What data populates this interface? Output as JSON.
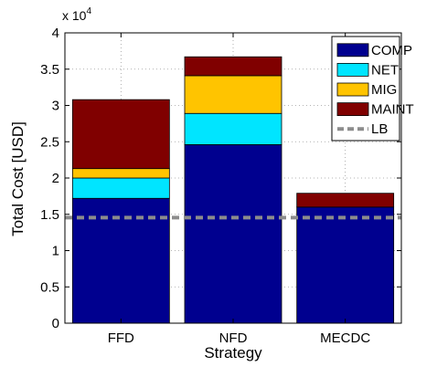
{
  "chart_data": {
    "type": "bar",
    "stacked": true,
    "categories": [
      "FFD",
      "NFD",
      "MECDC"
    ],
    "series": [
      {
        "name": "COMP",
        "color": "#00008f",
        "values": [
          17200,
          24600,
          16000
        ]
      },
      {
        "name": "NET",
        "color": "#00e5ff",
        "values": [
          2800,
          4300,
          0
        ]
      },
      {
        "name": "MIG",
        "color": "#ffc400",
        "values": [
          1300,
          5200,
          0
        ]
      },
      {
        "name": "MAINT",
        "color": "#800000",
        "values": [
          9500,
          2600,
          1900
        ]
      }
    ],
    "reference_line": {
      "name": "LB",
      "value": 14550,
      "color": "#8c8c8c",
      "style": "dashed"
    },
    "xlabel": "Strategy",
    "ylabel": "Total Cost [USD]",
    "y_exponent_label": "x 10",
    "y_exponent": "4",
    "ylim": [
      0,
      40000
    ],
    "yticks": [
      0,
      5000,
      10000,
      15000,
      20000,
      25000,
      30000,
      35000,
      40000
    ],
    "ytick_labels": [
      "0",
      "0.5",
      "1",
      "1.5",
      "2",
      "2.5",
      "3",
      "3.5",
      "4"
    ],
    "grid": true,
    "legend_position": "top-right"
  }
}
